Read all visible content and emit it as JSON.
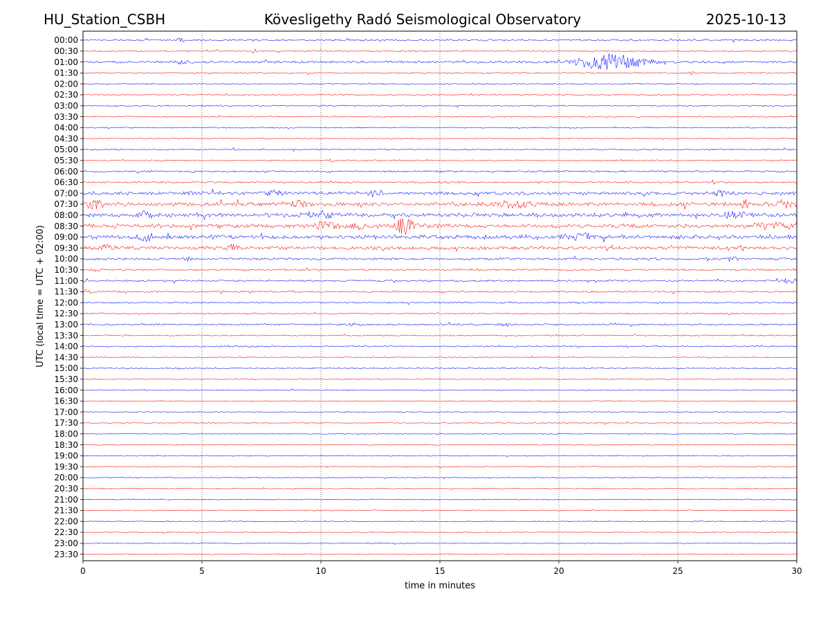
{
  "header": {
    "station": "HU_Station_CSBH",
    "observatory": "Kövesligethy Radó Seismological Observatory",
    "date": "2025-10-13"
  },
  "chart_data": {
    "type": "line",
    "title": "Kövesligethy Radó Seismological Observatory",
    "xlabel": "time in minutes",
    "ylabel": "UTC (local time = UTC + 02:00)",
    "xlim": [
      0,
      30
    ],
    "xticks": [
      0,
      5,
      10,
      15,
      20,
      25,
      30
    ],
    "xtick_labels": [
      "0",
      "5",
      "10",
      "15",
      "20",
      "25",
      "30"
    ],
    "vertical_gridlines_at": [
      5,
      10,
      15,
      20,
      25
    ],
    "grid_style": "dotted",
    "row_labels": [
      "00:00",
      "00:30",
      "01:00",
      "01:30",
      "02:00",
      "02:30",
      "03:00",
      "03:30",
      "04:00",
      "04:30",
      "05:00",
      "05:30",
      "06:00",
      "06:30",
      "07:00",
      "07:30",
      "08:00",
      "08:30",
      "09:00",
      "09:30",
      "10:00",
      "10:30",
      "11:00",
      "11:30",
      "12:00",
      "12:30",
      "13:00",
      "13:30",
      "14:00",
      "14:30",
      "15:00",
      "15:30",
      "16:00",
      "16:30",
      "17:00",
      "17:30",
      "18:00",
      "18:30",
      "19:00",
      "19:30",
      "20:00",
      "20:30",
      "21:00",
      "21:30",
      "22:00",
      "22:30",
      "23:00",
      "23:30"
    ],
    "trace_colors": [
      "#0000ff",
      "#ff0000"
    ],
    "trace_amplitude": {
      "00:00": 0.15,
      "00:30": 0.12,
      "01:00": 0.2,
      "01:30": 0.12,
      "02:00": 0.1,
      "02:30": 0.1,
      "03:00": 0.1,
      "03:30": 0.1,
      "04:00": 0.1,
      "04:30": 0.1,
      "05:00": 0.12,
      "05:30": 0.12,
      "06:00": 0.15,
      "06:30": 0.15,
      "07:00": 0.3,
      "07:30": 0.35,
      "08:00": 0.35,
      "08:30": 0.35,
      "09:00": 0.35,
      "09:30": 0.3,
      "10:00": 0.2,
      "10:30": 0.15,
      "11:00": 0.15,
      "11:30": 0.15,
      "12:00": 0.12,
      "12:30": 0.12,
      "13:00": 0.15,
      "13:30": 0.1,
      "14:00": 0.12,
      "14:30": 0.1,
      "15:00": 0.1,
      "15:30": 0.08,
      "16:00": 0.08,
      "16:30": 0.08,
      "17:00": 0.08,
      "17:30": 0.08,
      "18:00": 0.08,
      "18:30": 0.08,
      "19:00": 0.08,
      "19:30": 0.08,
      "20:00": 0.08,
      "20:30": 0.08,
      "21:00": 0.08,
      "21:30": 0.08,
      "22:00": 0.08,
      "22:30": 0.08,
      "23:00": 0.08,
      "23:30": 0.08
    },
    "events": [
      {
        "row": "00:00",
        "minute": 4.1,
        "amplitude": 0.3,
        "duration": 0.3
      },
      {
        "row": "00:30",
        "minute": 7.2,
        "amplitude": 0.5,
        "duration": 0.15
      },
      {
        "row": "01:00",
        "minute": 4.2,
        "amplitude": 0.4,
        "duration": 0.5
      },
      {
        "row": "01:00",
        "minute": 22.1,
        "amplitude": 1.6,
        "duration": 2.0
      },
      {
        "row": "01:30",
        "minute": 25.6,
        "amplitude": 0.3,
        "duration": 0.15
      },
      {
        "row": "05:30",
        "minute": 10.4,
        "amplitude": 0.4,
        "duration": 0.15
      },
      {
        "row": "06:30",
        "minute": 26.5,
        "amplitude": 0.4,
        "duration": 0.2
      },
      {
        "row": "07:00",
        "minute": 12.3,
        "amplitude": 0.6,
        "duration": 0.4
      },
      {
        "row": "07:00",
        "minute": 8.0,
        "amplitude": 0.5,
        "duration": 0.5
      },
      {
        "row": "07:00",
        "minute": 26.8,
        "amplitude": 0.6,
        "duration": 0.3
      },
      {
        "row": "07:30",
        "minute": 0.5,
        "amplitude": 0.9,
        "duration": 0.5
      },
      {
        "row": "07:30",
        "minute": 9.1,
        "amplitude": 0.7,
        "duration": 0.4
      },
      {
        "row": "07:30",
        "minute": 18.0,
        "amplitude": 0.6,
        "duration": 1.0
      },
      {
        "row": "07:30",
        "minute": 27.8,
        "amplitude": 0.6,
        "duration": 0.4
      },
      {
        "row": "07:30",
        "minute": 29.5,
        "amplitude": 0.6,
        "duration": 0.5
      },
      {
        "row": "08:00",
        "minute": 2.6,
        "amplitude": 0.6,
        "duration": 0.4
      },
      {
        "row": "08:00",
        "minute": 10.0,
        "amplitude": 0.5,
        "duration": 1.0
      },
      {
        "row": "08:00",
        "minute": 27.4,
        "amplitude": 0.6,
        "duration": 0.5
      },
      {
        "row": "08:30",
        "minute": 13.5,
        "amplitude": 1.4,
        "duration": 0.7
      },
      {
        "row": "08:30",
        "minute": 10.2,
        "amplitude": 0.6,
        "duration": 0.8
      },
      {
        "row": "08:30",
        "minute": 11.6,
        "amplitude": 0.6,
        "duration": 0.4
      },
      {
        "row": "08:30",
        "minute": 28.5,
        "amplitude": 0.7,
        "duration": 0.4
      },
      {
        "row": "08:30",
        "minute": 29.3,
        "amplitude": 0.6,
        "duration": 0.6
      },
      {
        "row": "09:00",
        "minute": 2.7,
        "amplitude": 0.8,
        "duration": 0.5
      },
      {
        "row": "09:00",
        "minute": 21.0,
        "amplitude": 0.6,
        "duration": 0.8
      },
      {
        "row": "09:30",
        "minute": 6.3,
        "amplitude": 0.6,
        "duration": 0.3
      },
      {
        "row": "09:30",
        "minute": 1.0,
        "amplitude": 0.5,
        "duration": 0.6
      },
      {
        "row": "10:00",
        "minute": 4.5,
        "amplitude": 0.4,
        "duration": 0.2
      },
      {
        "row": "10:00",
        "minute": 27.3,
        "amplitude": 0.4,
        "duration": 0.3
      },
      {
        "row": "10:30",
        "minute": 0.6,
        "amplitude": 0.3,
        "duration": 0.2
      },
      {
        "row": "11:00",
        "minute": 29.7,
        "amplitude": 0.5,
        "duration": 0.4
      },
      {
        "row": "11:30",
        "minute": 0.2,
        "amplitude": 0.4,
        "duration": 0.3
      },
      {
        "row": "13:00",
        "minute": 17.8,
        "amplitude": 0.3,
        "duration": 0.3
      },
      {
        "row": "13:00",
        "minute": 11.5,
        "amplitude": 0.3,
        "duration": 0.5
      },
      {
        "row": "17:30",
        "minute": 21.9,
        "amplitude": 0.3,
        "duration": 0.15
      }
    ]
  }
}
